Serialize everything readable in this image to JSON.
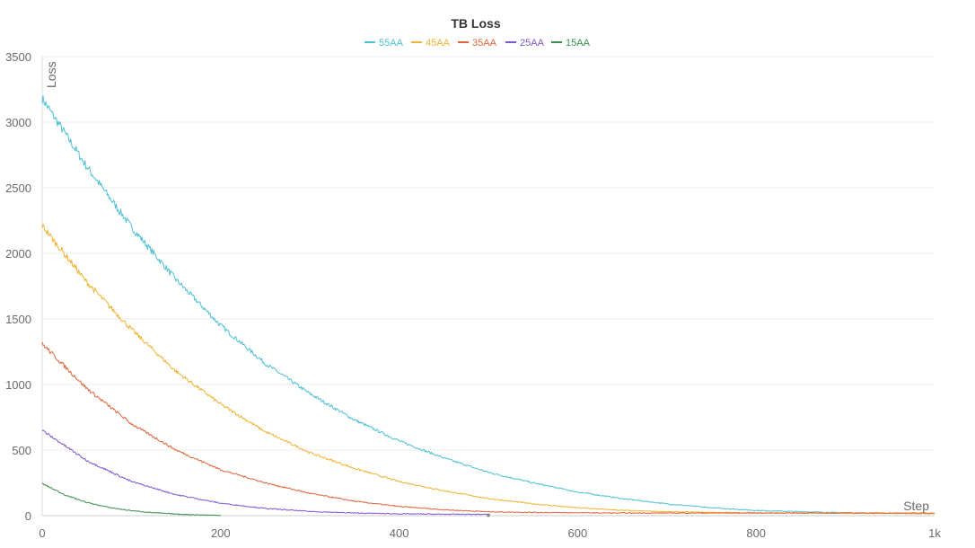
{
  "chart_data": {
    "type": "line",
    "title": "TB Loss",
    "xlabel": "Step",
    "ylabel": "Loss",
    "xlim": [
      0,
      1000
    ],
    "ylim": [
      0,
      3500
    ],
    "x_ticks": [
      0,
      200,
      400,
      600,
      800,
      1000
    ],
    "x_tick_labels": [
      "0",
      "200",
      "400",
      "600",
      "800",
      "1k"
    ],
    "y_ticks": [
      0,
      500,
      1000,
      1500,
      2000,
      2500,
      3000,
      3500
    ],
    "y_tick_labels": [
      "0",
      "500",
      "1000",
      "1500",
      "2000",
      "2500",
      "3000",
      "3500"
    ],
    "grid": true,
    "legend_position": "top-center",
    "series": [
      {
        "name": "55AA",
        "color": "#4dc0d6",
        "x": [
          0,
          50,
          100,
          150,
          200,
          250,
          300,
          350,
          400,
          450,
          500,
          550,
          600,
          650,
          700,
          750,
          800,
          850,
          900,
          950,
          1000
        ],
        "y": [
          3180,
          2660,
          2200,
          1800,
          1450,
          1160,
          930,
          730,
          570,
          440,
          330,
          250,
          180,
          130,
          90,
          60,
          40,
          30,
          22,
          18,
          15
        ]
      },
      {
        "name": "45AA",
        "color": "#f2b233",
        "x": [
          0,
          50,
          100,
          150,
          200,
          250,
          300,
          350,
          400,
          450,
          500,
          550,
          600,
          650,
          700,
          750,
          800,
          850,
          900,
          950,
          1000
        ],
        "y": [
          2210,
          1780,
          1420,
          1100,
          850,
          640,
          480,
          360,
          260,
          190,
          130,
          90,
          60,
          40,
          30,
          25,
          22,
          20,
          18,
          17,
          16
        ]
      },
      {
        "name": "35AA",
        "color": "#e0643a",
        "x": [
          0,
          50,
          100,
          150,
          200,
          250,
          300,
          350,
          400,
          450,
          500,
          550,
          600,
          650,
          700,
          750,
          800,
          850,
          900,
          950,
          1000
        ],
        "y": [
          1310,
          970,
          700,
          500,
          350,
          250,
          170,
          110,
          70,
          45,
          30,
          25,
          22,
          20,
          20,
          20,
          20,
          20,
          20,
          20,
          20
        ]
      },
      {
        "name": "25AA",
        "color": "#7b56d6",
        "x": [
          0,
          50,
          100,
          150,
          200,
          250,
          300,
          350,
          400,
          450,
          500
        ],
        "y": [
          650,
          420,
          260,
          160,
          95,
          55,
          32,
          20,
          14,
          11,
          10
        ]
      },
      {
        "name": "15AA",
        "color": "#3a8f4f",
        "x": [
          0,
          25,
          50,
          75,
          100,
          125,
          150,
          175,
          200
        ],
        "y": [
          245,
          160,
          100,
          62,
          38,
          22,
          12,
          6,
          3
        ]
      }
    ]
  }
}
